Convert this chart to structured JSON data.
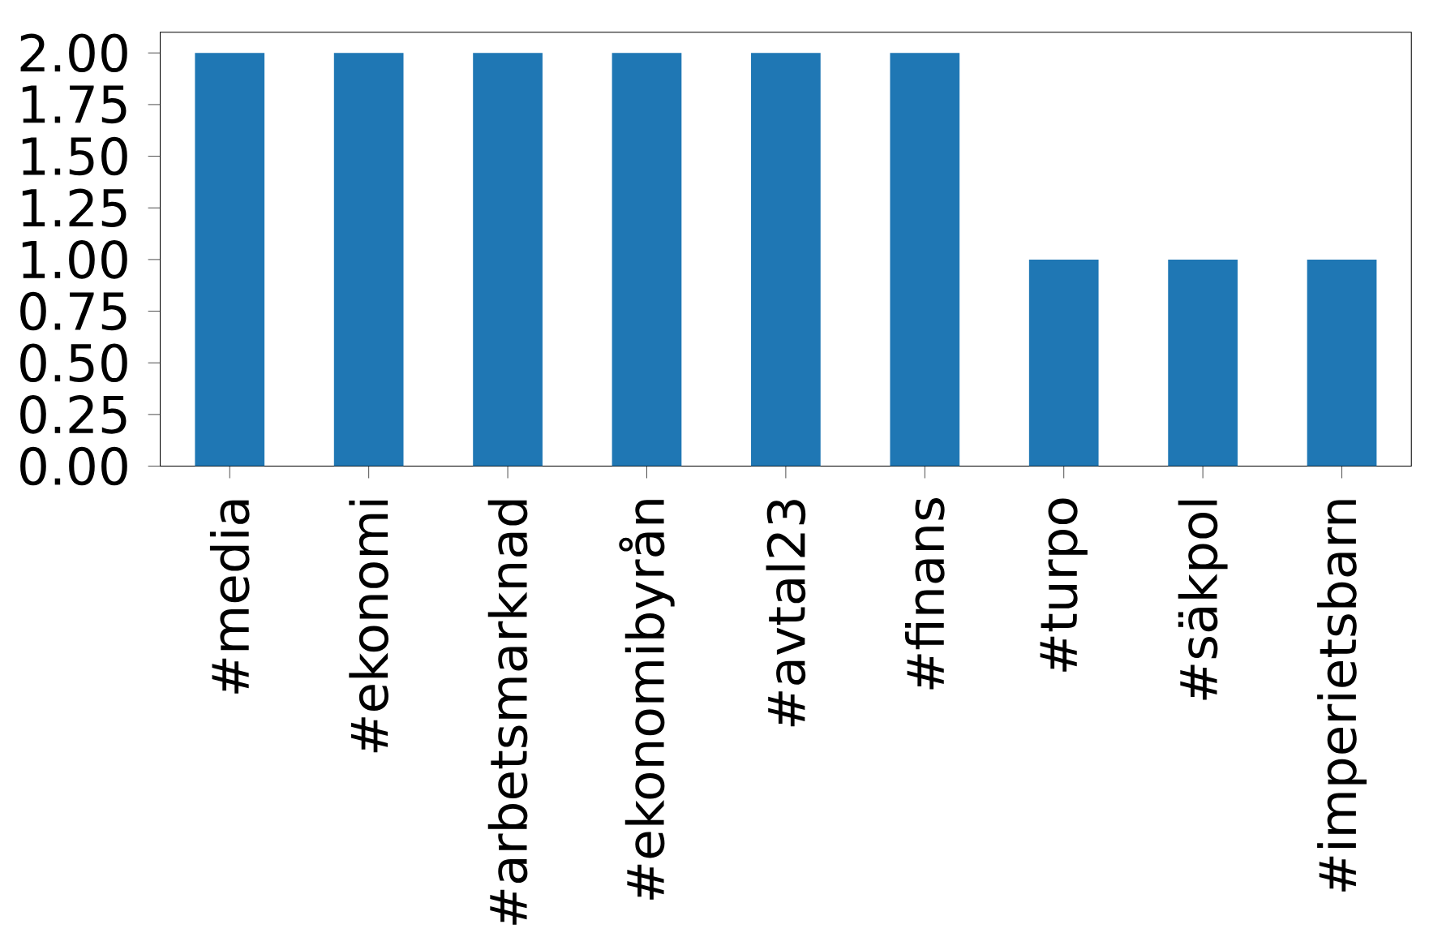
{
  "chart_data": {
    "type": "bar",
    "categories": [
      "#media",
      "#ekonomi",
      "#arbetsmarknad",
      "#ekonomibyrån",
      "#avtal23",
      "#finans",
      "#turpo",
      "#säkpol",
      "#imperietsbarn"
    ],
    "values": [
      2,
      2,
      2,
      2,
      2,
      2,
      1,
      1,
      1
    ],
    "color": "#1f77b4",
    "ylim": [
      0,
      2.1
    ],
    "yticks": [
      {
        "value": 0,
        "label": "0.00"
      },
      {
        "value": 0.25,
        "label": "0.25"
      },
      {
        "value": 0.5,
        "label": "0.50"
      },
      {
        "value": 0.75,
        "label": "0.75"
      },
      {
        "value": 1,
        "label": "1.00"
      },
      {
        "value": 1.25,
        "label": "1.25"
      },
      {
        "value": 1.5,
        "label": "1.50"
      },
      {
        "value": 1.75,
        "label": "1.75"
      },
      {
        "value": 2,
        "label": "2.00"
      }
    ]
  }
}
